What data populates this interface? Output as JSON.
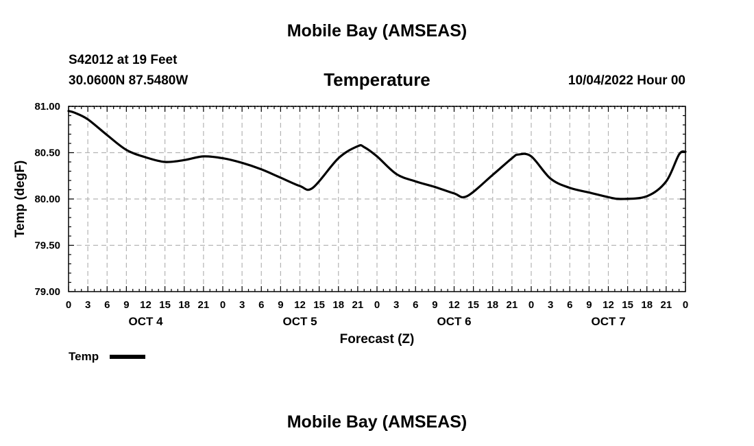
{
  "header": {
    "title": "Mobile Bay (AMSEAS)",
    "station": "S42012 at 19 Feet",
    "location": "30.0600N  87.5480W",
    "chart_title": "Temperature",
    "issued": "10/04/2022 Hour 00"
  },
  "footer": {
    "title": "Mobile Bay (AMSEAS)"
  },
  "legend": {
    "label": "Temp"
  },
  "chart_data": {
    "type": "line",
    "title": "Temperature",
    "xlabel": "Forecast (Z)",
    "ylabel": "Temp (degF)",
    "ylim": [
      79.0,
      81.0
    ],
    "y_ticks": [
      "79.00",
      "79.50",
      "80.00",
      "80.50",
      "81.00"
    ],
    "x_range_hours": [
      0,
      96
    ],
    "x_tick_labels": [
      "0",
      "3",
      "6",
      "9",
      "12",
      "15",
      "18",
      "21",
      "0",
      "3",
      "6",
      "9",
      "12",
      "15",
      "18",
      "21",
      "0",
      "3",
      "6",
      "9",
      "12",
      "15",
      "18",
      "21",
      "0",
      "3",
      "6",
      "9",
      "12",
      "15",
      "18",
      "21",
      "0"
    ],
    "day_labels": [
      {
        "label": "OCT 4",
        "hour": 12
      },
      {
        "label": "OCT 5",
        "hour": 36
      },
      {
        "label": "OCT 6",
        "hour": 60
      },
      {
        "label": "OCT 7",
        "hour": 84
      }
    ],
    "grid": true,
    "legend_position": "bottom-left",
    "series": [
      {
        "name": "Temp",
        "color": "#000000",
        "x": [
          0,
          1,
          3,
          6,
          9,
          12,
          15,
          18,
          21,
          24,
          27,
          30,
          33,
          36,
          38,
          42,
          45,
          46,
          48,
          51,
          54,
          57,
          60,
          62,
          66,
          69,
          70,
          72,
          75,
          78,
          81,
          84,
          86,
          90,
          93,
          95,
          96
        ],
        "values": [
          80.95,
          80.93,
          80.86,
          80.69,
          80.53,
          80.45,
          80.4,
          80.42,
          80.46,
          80.44,
          80.39,
          80.32,
          80.23,
          80.14,
          80.12,
          80.44,
          80.57,
          80.56,
          80.46,
          80.27,
          80.19,
          80.13,
          80.06,
          80.03,
          80.26,
          80.44,
          80.48,
          80.46,
          80.22,
          80.12,
          80.07,
          80.02,
          80.0,
          80.03,
          80.19,
          80.48,
          80.51
        ]
      }
    ]
  }
}
